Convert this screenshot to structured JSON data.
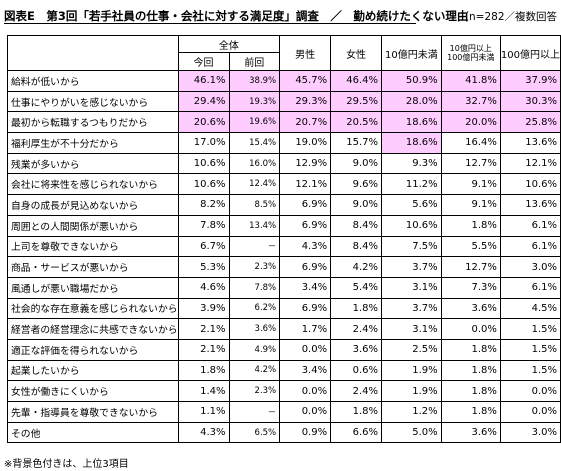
{
  "header": {
    "title": "図表E　第3回「若手社員の仕事・会社に対する満足度」調査　／　勤め続けたくない理由",
    "meta": "（n=282／複数回答"
  },
  "columns": {
    "overall_group": "全体",
    "current": "今回",
    "previous": "前回",
    "male": "男性",
    "female": "女性",
    "under_1b": "10億円未満",
    "over_1b_line1": "10億円以上",
    "over_1b_line2": "100億円未満",
    "over_10b": "100億円以上"
  },
  "rows": [
    {
      "label": "給料が低いから",
      "values": [
        "46.1%",
        "38.9%",
        "45.7%",
        "46.4%",
        "50.9%",
        "41.8%",
        "37.9%"
      ],
      "highlight": [
        true,
        true,
        true,
        true,
        true,
        true,
        true
      ]
    },
    {
      "label": "仕事にやりがいを感じないから",
      "values": [
        "29.4%",
        "19.3%",
        "29.3%",
        "29.5%",
        "28.0%",
        "32.7%",
        "30.3%"
      ],
      "highlight": [
        true,
        true,
        true,
        true,
        true,
        true,
        true
      ]
    },
    {
      "label": "最初から転職するつもりだから",
      "values": [
        "20.6%",
        "19.6%",
        "20.7%",
        "20.5%",
        "18.6%",
        "20.0%",
        "25.8%"
      ],
      "highlight": [
        true,
        true,
        true,
        true,
        true,
        true,
        true
      ]
    },
    {
      "label": "福利厚生が不十分だから",
      "values": [
        "17.0%",
        "15.4%",
        "19.0%",
        "15.7%",
        "18.6%",
        "16.4%",
        "13.6%"
      ],
      "highlight": [
        false,
        false,
        false,
        false,
        true,
        false,
        false
      ]
    },
    {
      "label": "残業が多いから",
      "values": [
        "10.6%",
        "16.0%",
        "12.9%",
        "9.0%",
        "9.3%",
        "12.7%",
        "12.1%"
      ],
      "highlight": [
        false,
        false,
        false,
        false,
        false,
        false,
        false
      ]
    },
    {
      "label": "会社に将来性を感じられないから",
      "values": [
        "10.6%",
        "12.4%",
        "12.1%",
        "9.6%",
        "11.2%",
        "9.1%",
        "10.6%"
      ],
      "highlight": [
        false,
        false,
        false,
        false,
        false,
        false,
        false
      ]
    },
    {
      "label": "自身の成長が見込めないから",
      "values": [
        "8.2%",
        "8.5%",
        "6.9%",
        "9.0%",
        "5.6%",
        "9.1%",
        "13.6%"
      ],
      "highlight": [
        false,
        false,
        false,
        false,
        false,
        false,
        false
      ]
    },
    {
      "label": "周囲との人間関係が悪いから",
      "values": [
        "7.8%",
        "13.4%",
        "6.9%",
        "8.4%",
        "10.6%",
        "1.8%",
        "6.1%"
      ],
      "highlight": [
        false,
        false,
        false,
        false,
        false,
        false,
        false
      ]
    },
    {
      "label": "上司を尊敬できないから",
      "values": [
        "6.7%",
        "－",
        "4.3%",
        "8.4%",
        "7.5%",
        "5.5%",
        "6.1%"
      ],
      "highlight": [
        false,
        false,
        false,
        false,
        false,
        false,
        false
      ]
    },
    {
      "label": "商品・サービスが悪いから",
      "values": [
        "5.3%",
        "2.3%",
        "6.9%",
        "4.2%",
        "3.7%",
        "12.7%",
        "3.0%"
      ],
      "highlight": [
        false,
        false,
        false,
        false,
        false,
        false,
        false
      ]
    },
    {
      "label": "風通しが悪い職場だから",
      "values": [
        "4.6%",
        "7.8%",
        "3.4%",
        "5.4%",
        "3.1%",
        "7.3%",
        "6.1%"
      ],
      "highlight": [
        false,
        false,
        false,
        false,
        false,
        false,
        false
      ]
    },
    {
      "label": "社会的な存在意義を感じられないから",
      "values": [
        "3.9%",
        "6.2%",
        "6.9%",
        "1.8%",
        "3.7%",
        "3.6%",
        "4.5%"
      ],
      "highlight": [
        false,
        false,
        false,
        false,
        false,
        false,
        false
      ]
    },
    {
      "label": "経営者の経営理念に共感できないから",
      "values": [
        "2.1%",
        "3.6%",
        "1.7%",
        "2.4%",
        "3.1%",
        "0.0%",
        "1.5%"
      ],
      "highlight": [
        false,
        false,
        false,
        false,
        false,
        false,
        false
      ]
    },
    {
      "label": "適正な評価を得られないから",
      "values": [
        "2.1%",
        "4.9%",
        "0.0%",
        "3.6%",
        "2.5%",
        "1.8%",
        "1.5%"
      ],
      "highlight": [
        false,
        false,
        false,
        false,
        false,
        false,
        false
      ]
    },
    {
      "label": "起業したいから",
      "values": [
        "1.8%",
        "4.2%",
        "3.4%",
        "0.6%",
        "1.9%",
        "1.8%",
        "1.5%"
      ],
      "highlight": [
        false,
        false,
        false,
        false,
        false,
        false,
        false
      ]
    },
    {
      "label": "女性が働きにくいから",
      "values": [
        "1.4%",
        "2.3%",
        "0.0%",
        "2.4%",
        "1.9%",
        "1.8%",
        "0.0%"
      ],
      "highlight": [
        false,
        false,
        false,
        false,
        false,
        false,
        false
      ]
    },
    {
      "label": "先輩・指導員を尊敬できないから",
      "values": [
        "1.1%",
        "－",
        "0.0%",
        "1.8%",
        "1.2%",
        "1.8%",
        "0.0%"
      ],
      "highlight": [
        false,
        false,
        false,
        false,
        false,
        false,
        false
      ]
    },
    {
      "label": "その他",
      "values": [
        "4.3%",
        "6.5%",
        "0.9%",
        "6.6%",
        "5.0%",
        "3.6%",
        "3.0%"
      ],
      "highlight": [
        false,
        false,
        false,
        false,
        false,
        false,
        false
      ]
    }
  ],
  "footnote": "※背景色付きは、上位3項目",
  "colors": {
    "highlight": "#ffccff",
    "border": "#000000"
  }
}
